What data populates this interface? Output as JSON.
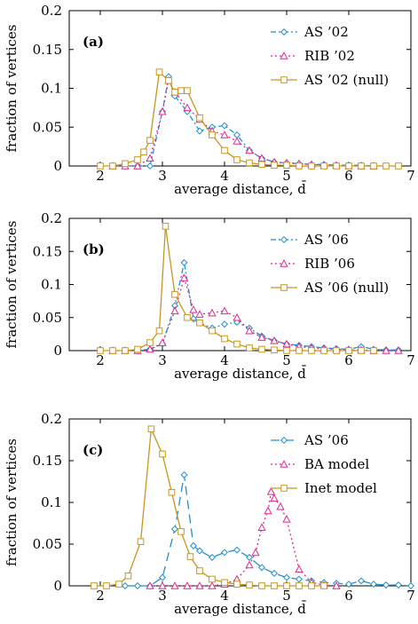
{
  "colors": {
    "blue": "#1f8fd0",
    "magenta": "#e0288f",
    "gold": "#c8961e"
  },
  "chart_data": [
    {
      "type": "line",
      "panel_label": "(a)",
      "xlabel": "average distance, d̄",
      "ylabel": "fraction of vertices",
      "xlim": [
        1.5,
        7
      ],
      "ylim": [
        0,
        0.2
      ],
      "xticks": [
        "2",
        "3",
        "4",
        "5",
        "6",
        "7"
      ],
      "yticks": [
        "0",
        "0.05",
        "0.1",
        "0.15",
        "0.2"
      ],
      "legend_position": "top-right",
      "series": [
        {
          "name": "AS ’02",
          "color": "#1f8fd0",
          "marker": "diamond",
          "dash": "6,3,2,3",
          "x": [
            2.4,
            2.6,
            2.8,
            3.0,
            3.1,
            3.2,
            3.4,
            3.6,
            3.8,
            4.0,
            4.2,
            4.4,
            4.6,
            4.8,
            5.0,
            5.2,
            5.4,
            5.6,
            5.8,
            6.0,
            6.2,
            6.4
          ],
          "y": [
            0,
            0,
            0,
            0.07,
            0.115,
            0.09,
            0.07,
            0.045,
            0.05,
            0.052,
            0.04,
            0.02,
            0.01,
            0.005,
            0.004,
            0.003,
            0.002,
            0.002,
            0.001,
            0.001,
            0.001,
            0
          ]
        },
        {
          "name": "RIB ’02",
          "color": "#e0288f",
          "marker": "triangle",
          "dash": "2,3",
          "x": [
            2.2,
            2.4,
            2.6,
            2.8,
            3.0,
            3.1,
            3.2,
            3.4,
            3.6,
            3.8,
            4.0,
            4.2,
            4.4,
            4.6,
            4.8,
            5.0,
            5.2,
            5.4,
            5.6,
            5.8,
            6.0,
            6.2,
            6.4
          ],
          "y": [
            0,
            0,
            0,
            0.01,
            0.07,
            0.11,
            0.095,
            0.075,
            0.06,
            0.045,
            0.04,
            0.032,
            0.02,
            0.01,
            0.005,
            0.004,
            0.003,
            0.002,
            0.001,
            0.001,
            0,
            0,
            0
          ]
        },
        {
          "name": "AS ’02 (null)",
          "color": "#c8961e",
          "marker": "square",
          "dash": "",
          "x": [
            2.0,
            2.2,
            2.4,
            2.6,
            2.7,
            2.8,
            2.95,
            3.1,
            3.2,
            3.3,
            3.4,
            3.6,
            3.8,
            4.0,
            4.2,
            4.4,
            4.6,
            4.8,
            5.0,
            5.2,
            5.4,
            5.6,
            5.8,
            6.0,
            6.2,
            6.4,
            6.6,
            6.8
          ],
          "y": [
            0,
            0,
            0.003,
            0.008,
            0.018,
            0.033,
            0.121,
            0.11,
            0.095,
            0.097,
            0.097,
            0.062,
            0.04,
            0.02,
            0.008,
            0.004,
            0.002,
            0.001,
            0.001,
            0,
            0,
            0,
            0,
            0,
            0,
            0,
            0,
            0
          ]
        }
      ]
    },
    {
      "type": "line",
      "panel_label": "(b)",
      "xlabel": "average distance, d̄",
      "ylabel": "fraction of vertices",
      "xlim": [
        1.5,
        7
      ],
      "ylim": [
        0,
        0.2
      ],
      "xticks": [
        "2",
        "3",
        "4",
        "5",
        "6",
        "7"
      ],
      "yticks": [
        "0",
        "0.05",
        "0.1",
        "0.15",
        "0.2"
      ],
      "legend_position": "top-right",
      "series": [
        {
          "name": "AS ’06",
          "color": "#1f8fd0",
          "marker": "diamond",
          "dash": "6,3,2,3",
          "x": [
            2.4,
            2.6,
            2.8,
            3.0,
            3.2,
            3.35,
            3.5,
            3.6,
            3.8,
            4.0,
            4.2,
            4.4,
            4.6,
            4.8,
            5.0,
            5.2,
            5.4,
            5.6,
            5.8,
            6.0,
            6.2,
            6.4,
            6.6,
            6.8
          ],
          "y": [
            0,
            0,
            0.002,
            0.01,
            0.068,
            0.133,
            0.048,
            0.042,
            0.034,
            0.04,
            0.043,
            0.034,
            0.022,
            0.015,
            0.01,
            0.008,
            0.006,
            0.004,
            0.003,
            0.002,
            0.006,
            0.002,
            0.001,
            0.001
          ]
        },
        {
          "name": "RIB ’06",
          "color": "#e0288f",
          "marker": "triangle",
          "dash": "2,3",
          "x": [
            2.2,
            2.4,
            2.6,
            2.8,
            3.0,
            3.2,
            3.35,
            3.5,
            3.6,
            3.8,
            4.0,
            4.2,
            4.4,
            4.6,
            4.8,
            5.0,
            5.2,
            5.4,
            5.6,
            5.8,
            6.0,
            6.2,
            6.4,
            6.6,
            6.8
          ],
          "y": [
            0,
            0,
            0,
            0.002,
            0.012,
            0.06,
            0.11,
            0.062,
            0.055,
            0.057,
            0.06,
            0.05,
            0.03,
            0.02,
            0.015,
            0.01,
            0.006,
            0.004,
            0.003,
            0.002,
            0.001,
            0.001,
            0,
            0,
            0
          ]
        },
        {
          "name": "AS ’06 (null)",
          "color": "#c8961e",
          "marker": "square",
          "dash": "",
          "x": [
            2.0,
            2.2,
            2.4,
            2.6,
            2.8,
            2.95,
            3.05,
            3.2,
            3.4,
            3.6,
            3.8,
            4.0,
            4.2,
            4.4,
            4.6,
            4.8,
            5.0,
            5.2,
            5.4,
            5.6,
            5.8,
            6.0,
            6.2,
            6.4
          ],
          "y": [
            0,
            0,
            0,
            0.002,
            0.012,
            0.03,
            0.188,
            0.085,
            0.05,
            0.042,
            0.03,
            0.018,
            0.01,
            0.004,
            0.002,
            0.001,
            0,
            0,
            0,
            0,
            0,
            0,
            0,
            0
          ]
        }
      ]
    },
    {
      "type": "line",
      "panel_label": "(c)",
      "xlabel": "average distance, d̄",
      "ylabel": "fraction of vertices",
      "xlim": [
        1.5,
        7
      ],
      "ylim": [
        0,
        0.2
      ],
      "xticks": [
        "2",
        "3",
        "4",
        "5",
        "6",
        "7"
      ],
      "yticks": [
        "0",
        "0.05",
        "0.1",
        "0.15",
        "0.2"
      ],
      "legend_position": "top-right",
      "series": [
        {
          "name": "AS ’06",
          "color": "#1f8fd0",
          "marker": "diamond",
          "dash": "10,6",
          "x": [
            2.4,
            2.6,
            2.8,
            3.0,
            3.2,
            3.35,
            3.5,
            3.6,
            3.8,
            4.0,
            4.2,
            4.4,
            4.6,
            4.8,
            5.0,
            5.2,
            5.4,
            5.6,
            5.8,
            6.0,
            6.2,
            6.4,
            6.6,
            6.8,
            7.0
          ],
          "y": [
            0,
            0,
            0,
            0.01,
            0.068,
            0.133,
            0.048,
            0.042,
            0.034,
            0.04,
            0.043,
            0.034,
            0.022,
            0.015,
            0.01,
            0.008,
            0.006,
            0.004,
            0.003,
            0.002,
            0.006,
            0.002,
            0.001,
            0.001,
            0
          ]
        },
        {
          "name": "BA model",
          "color": "#e0288f",
          "marker": "triangle",
          "dash": "2,3",
          "x": [
            2.8,
            3.0,
            3.2,
            3.4,
            3.6,
            3.8,
            4.0,
            4.2,
            4.4,
            4.5,
            4.6,
            4.7,
            4.75,
            4.8,
            4.9,
            5.0,
            5.2,
            5.4,
            5.6,
            5.8
          ],
          "y": [
            0,
            0,
            0,
            0,
            0,
            0,
            0.002,
            0.008,
            0.025,
            0.04,
            0.07,
            0.09,
            0.113,
            0.105,
            0.095,
            0.08,
            0.02,
            0.004,
            0.001,
            0
          ]
        },
        {
          "name": "Inet model",
          "color": "#c8961e",
          "marker": "square",
          "dash": "",
          "x": [
            1.9,
            2.1,
            2.3,
            2.45,
            2.65,
            2.82,
            3.0,
            3.15,
            3.3,
            3.45,
            3.6,
            3.8,
            4.0,
            4.2,
            4.4,
            4.6,
            4.8,
            5.0,
            5.2,
            5.4,
            5.6
          ],
          "y": [
            0,
            0,
            0.002,
            0.012,
            0.053,
            0.188,
            0.158,
            0.112,
            0.065,
            0.035,
            0.018,
            0.008,
            0.004,
            0.002,
            0.001,
            0,
            0,
            0,
            0,
            0,
            0
          ]
        }
      ]
    }
  ]
}
